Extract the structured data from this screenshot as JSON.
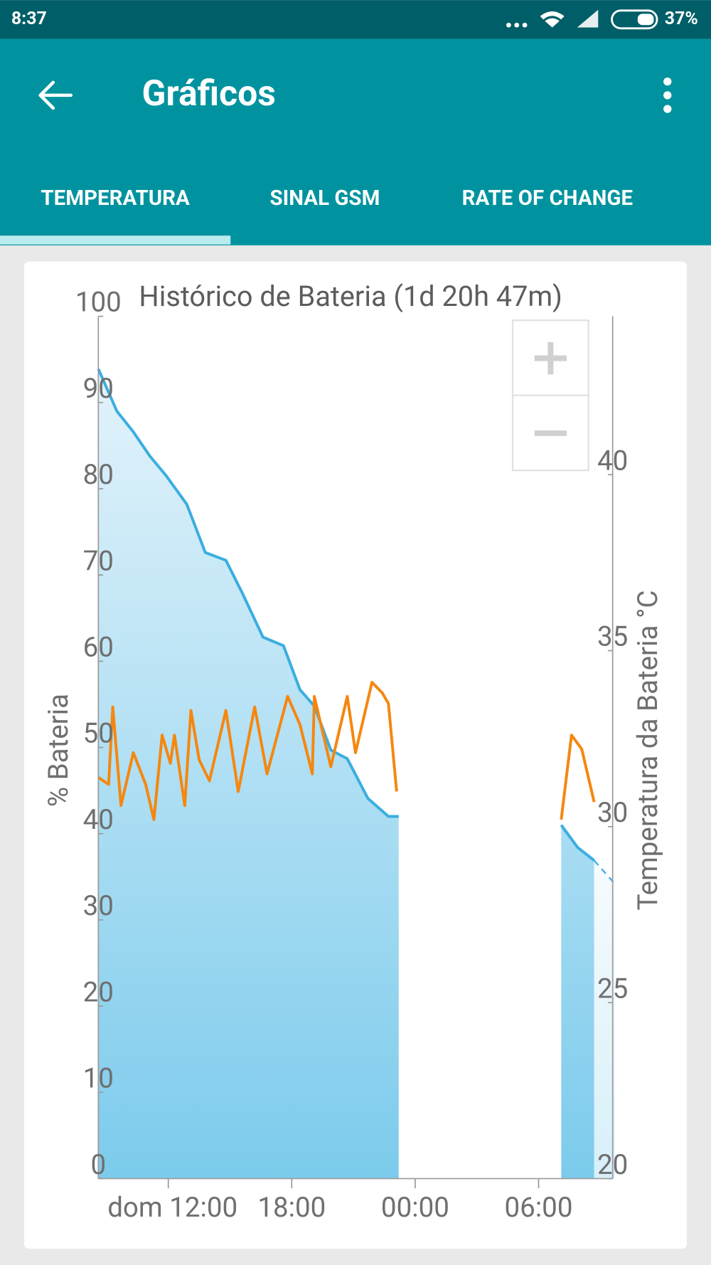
{
  "status_bar": {
    "time": "8:37",
    "battery": "37%"
  },
  "app_bar": {
    "title": "Gráficos"
  },
  "tabs": [
    "TEMPERATURA",
    "SINAL GSM",
    "RATE OF CHANGE"
  ],
  "chart_data": {
    "type": "line",
    "title": "Histórico de Bateria (1d 20h 47m)",
    "ylabel": "% Bateria",
    "y2label": "Temperatura da Bateria °C",
    "xlim": [
      8.6,
      33.6
    ],
    "xticks": [
      {
        "value": 12,
        "label": "dom 12:00"
      },
      {
        "value": 18,
        "label": "18:00"
      },
      {
        "value": 24,
        "label": "00:00"
      },
      {
        "value": 30,
        "label": "06:00"
      }
    ],
    "ylim": [
      0,
      100
    ],
    "yticks": [
      0,
      10,
      20,
      30,
      40,
      50,
      60,
      70,
      80,
      90,
      100
    ],
    "y2lim": [
      20,
      44.5
    ],
    "y2ticks": [
      20,
      25,
      30,
      35,
      40
    ],
    "series": [
      {
        "axis": "y",
        "color": "#3aaee0",
        "area": true,
        "style": "solid",
        "x": [
          8.6,
          9.5,
          10.3,
          11.1,
          11.9,
          12.9,
          13.8,
          14.8,
          15.6,
          16.6,
          17.6,
          18.4,
          19.1,
          19.9,
          20.7,
          21.7,
          22.7,
          23.2,
          27,
          31.1,
          31.9,
          32.7
        ],
        "values": [
          93.9,
          89,
          86.6,
          83.8,
          81.5,
          78.2,
          72.6,
          71.7,
          67.9,
          62.8,
          61.8,
          56.7,
          54.8,
          49.7,
          48.7,
          44.1,
          42,
          42,
          null,
          41,
          38.4,
          36.9
        ]
      },
      {
        "axis": "y",
        "color": "#3aaee0",
        "area": true,
        "style": "dashed",
        "x": [
          32.7,
          33.7
        ],
        "values": [
          36.9,
          34.2
        ]
      },
      {
        "axis": "y2",
        "color": "#f5870f",
        "area": false,
        "style": "solid",
        "x": [
          8.6,
          9.1,
          9.3,
          9.7,
          10.3,
          10.9,
          11.3,
          11.7,
          12.1,
          12.3,
          12.8,
          13.1,
          13.5,
          14.0,
          14.8,
          15.4,
          16.2,
          16.8,
          17.8,
          18.4,
          19.0,
          19.1,
          19.9,
          20.7,
          21.1,
          21.9,
          22.4,
          22.7,
          23.1,
          27,
          31.1,
          31.6,
          32.1,
          32.7
        ],
        "values": [
          31.4,
          31.2,
          33.4,
          30.6,
          32.1,
          31.2,
          30.2,
          32.6,
          31.8,
          32.6,
          30.6,
          33.3,
          31.9,
          31.3,
          33.3,
          31.0,
          33.4,
          31.5,
          33.7,
          32.9,
          31.5,
          33.7,
          31.7,
          33.7,
          32.1,
          34.1,
          33.8,
          33.5,
          31.0,
          null,
          30.2,
          32.6,
          32.2,
          30.7
        ]
      }
    ]
  }
}
